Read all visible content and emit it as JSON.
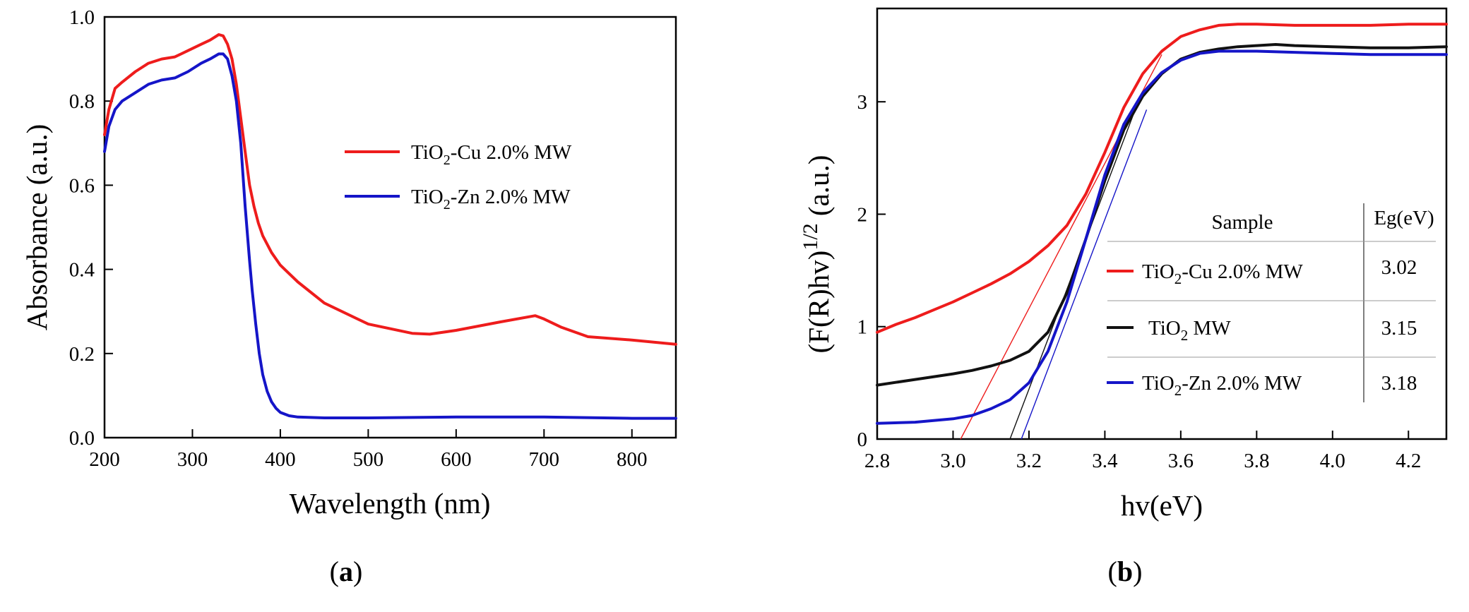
{
  "panels": [
    {
      "open": "(",
      "letter": "a",
      "close": ")"
    },
    {
      "open": "(",
      "letter": "b",
      "close": ")"
    }
  ],
  "chart_data": [
    {
      "type": "line",
      "id": "a",
      "xlabel": "Wavelength (nm)",
      "ylabel": "Absorbance (a.u.)",
      "xlim": [
        200,
        850
      ],
      "ylim": [
        0.0,
        1.0
      ],
      "xticks": [
        200,
        300,
        400,
        500,
        600,
        700,
        800
      ],
      "xtick_labels": [
        "200",
        "300",
        "400",
        "500",
        "600",
        "700",
        "800"
      ],
      "yticks": [
        0.0,
        0.2,
        0.4,
        0.6,
        0.8,
        1.0
      ],
      "ytick_labels": [
        "0.0",
        "0.2",
        "0.4",
        "0.6",
        "0.8",
        "1.0"
      ],
      "grid": false,
      "legend_position": "center-right",
      "series": [
        {
          "name": "TiO2-Cu 2.0% MW",
          "label_parts": {
            "base": "TiO",
            "sub": "2",
            "rest": "-Cu 2.0% MW"
          },
          "color": "#ee1c1c",
          "x": [
            200,
            205,
            212,
            220,
            235,
            250,
            265,
            280,
            295,
            310,
            320,
            330,
            335,
            340,
            345,
            350,
            355,
            360,
            365,
            370,
            375,
            380,
            390,
            400,
            420,
            450,
            500,
            550,
            570,
            600,
            650,
            690,
            700,
            720,
            750,
            800,
            850
          ],
          "y": [
            0.72,
            0.78,
            0.83,
            0.845,
            0.87,
            0.89,
            0.9,
            0.905,
            0.92,
            0.935,
            0.945,
            0.958,
            0.955,
            0.935,
            0.9,
            0.84,
            0.76,
            0.68,
            0.6,
            0.55,
            0.51,
            0.48,
            0.44,
            0.41,
            0.37,
            0.32,
            0.27,
            0.248,
            0.246,
            0.255,
            0.275,
            0.29,
            0.282,
            0.262,
            0.24,
            0.232,
            0.222
          ]
        },
        {
          "name": "TiO2-Zn 2.0% MW",
          "label_parts": {
            "base": "TiO",
            "sub": "2",
            "rest": "-Zn 2.0% MW"
          },
          "color": "#1515c8",
          "x": [
            200,
            205,
            212,
            220,
            235,
            250,
            265,
            280,
            295,
            310,
            320,
            330,
            335,
            340,
            345,
            350,
            355,
            360,
            365,
            368,
            372,
            376,
            380,
            385,
            390,
            395,
            400,
            410,
            420,
            450,
            500,
            600,
            700,
            800,
            850
          ],
          "y": [
            0.68,
            0.74,
            0.78,
            0.8,
            0.82,
            0.84,
            0.85,
            0.855,
            0.87,
            0.89,
            0.9,
            0.912,
            0.912,
            0.9,
            0.86,
            0.8,
            0.7,
            0.55,
            0.42,
            0.35,
            0.27,
            0.2,
            0.15,
            0.11,
            0.085,
            0.07,
            0.06,
            0.052,
            0.049,
            0.047,
            0.047,
            0.049,
            0.049,
            0.046,
            0.046
          ]
        }
      ]
    },
    {
      "type": "line",
      "id": "b",
      "xlabel": "hv(eV)",
      "ylabel_parts": {
        "base": "(F(R)hv)",
        "sup": "1/2",
        "rest": " (a.u.)"
      },
      "xlim": [
        2.8,
        4.3
      ],
      "ylim": [
        0,
        3.83
      ],
      "xticks": [
        2.8,
        3.0,
        3.2,
        3.4,
        3.6,
        3.8,
        4.0,
        4.2
      ],
      "xtick_labels": [
        "2.8",
        "3.0",
        "3.2",
        "3.4",
        "3.6",
        "3.8",
        "4.0",
        "4.2"
      ],
      "yticks": [
        0,
        1,
        2,
        3
      ],
      "ytick_labels": [
        "0",
        "1",
        "2",
        "3"
      ],
      "grid": false,
      "series": [
        {
          "name": "TiO2-Cu 2.0% MW",
          "color": "#ee1c1c",
          "x": [
            2.8,
            2.85,
            2.9,
            2.95,
            3.0,
            3.05,
            3.1,
            3.15,
            3.2,
            3.25,
            3.3,
            3.35,
            3.4,
            3.45,
            3.5,
            3.55,
            3.6,
            3.65,
            3.7,
            3.75,
            3.8,
            3.9,
            4.0,
            4.1,
            4.2,
            4.3
          ],
          "y": [
            0.95,
            1.02,
            1.08,
            1.15,
            1.22,
            1.3,
            1.38,
            1.47,
            1.58,
            1.72,
            1.9,
            2.18,
            2.55,
            2.95,
            3.25,
            3.45,
            3.58,
            3.64,
            3.68,
            3.69,
            3.69,
            3.68,
            3.68,
            3.68,
            3.69,
            3.69
          ]
        },
        {
          "name": "TiO2 MW",
          "color": "#111111",
          "x": [
            2.8,
            2.9,
            3.0,
            3.05,
            3.1,
            3.15,
            3.2,
            3.25,
            3.3,
            3.35,
            3.4,
            3.45,
            3.5,
            3.55,
            3.6,
            3.65,
            3.7,
            3.75,
            3.8,
            3.85,
            3.9,
            4.0,
            4.1,
            4.2,
            4.3
          ],
          "y": [
            0.48,
            0.53,
            0.58,
            0.61,
            0.65,
            0.7,
            0.78,
            0.95,
            1.3,
            1.78,
            2.3,
            2.75,
            3.05,
            3.25,
            3.38,
            3.44,
            3.47,
            3.49,
            3.5,
            3.51,
            3.5,
            3.49,
            3.48,
            3.48,
            3.49
          ]
        },
        {
          "name": "TiO2-Zn 2.0% MW",
          "color": "#1515c8",
          "x": [
            2.8,
            2.9,
            3.0,
            3.05,
            3.1,
            3.15,
            3.2,
            3.25,
            3.3,
            3.35,
            3.4,
            3.45,
            3.5,
            3.55,
            3.6,
            3.65,
            3.7,
            3.8,
            3.9,
            4.0,
            4.1,
            4.2,
            4.3
          ],
          "y": [
            0.14,
            0.15,
            0.18,
            0.21,
            0.27,
            0.35,
            0.5,
            0.78,
            1.22,
            1.78,
            2.35,
            2.8,
            3.08,
            3.26,
            3.37,
            3.43,
            3.45,
            3.45,
            3.44,
            3.43,
            3.42,
            3.42,
            3.42
          ]
        }
      ],
      "tangent_lines": [
        {
          "color": "#ee1c1c",
          "x": [
            3.02,
            3.55
          ],
          "y": [
            0,
            3.42
          ]
        },
        {
          "color": "#111111",
          "x": [
            3.15,
            3.48
          ],
          "y": [
            0,
            2.93
          ]
        },
        {
          "color": "#1515c8",
          "x": [
            3.18,
            3.51
          ],
          "y": [
            0,
            2.93
          ]
        }
      ],
      "inset_table": {
        "headers": [
          "Sample",
          "Eg(eV)"
        ],
        "rows": [
          {
            "base": "TiO",
            "sub": "2",
            "rest": "-Cu 2.0% MW",
            "eg": "3.02",
            "color": "#ee1c1c"
          },
          {
            "base": "TiO",
            "sub": "2",
            "rest": " MW",
            "eg": "3.15",
            "color": "#111111"
          },
          {
            "base": "TiO",
            "sub": "2",
            "rest": "-Zn 2.0% MW",
            "eg": "3.18",
            "color": "#1515c8"
          }
        ]
      }
    }
  ]
}
